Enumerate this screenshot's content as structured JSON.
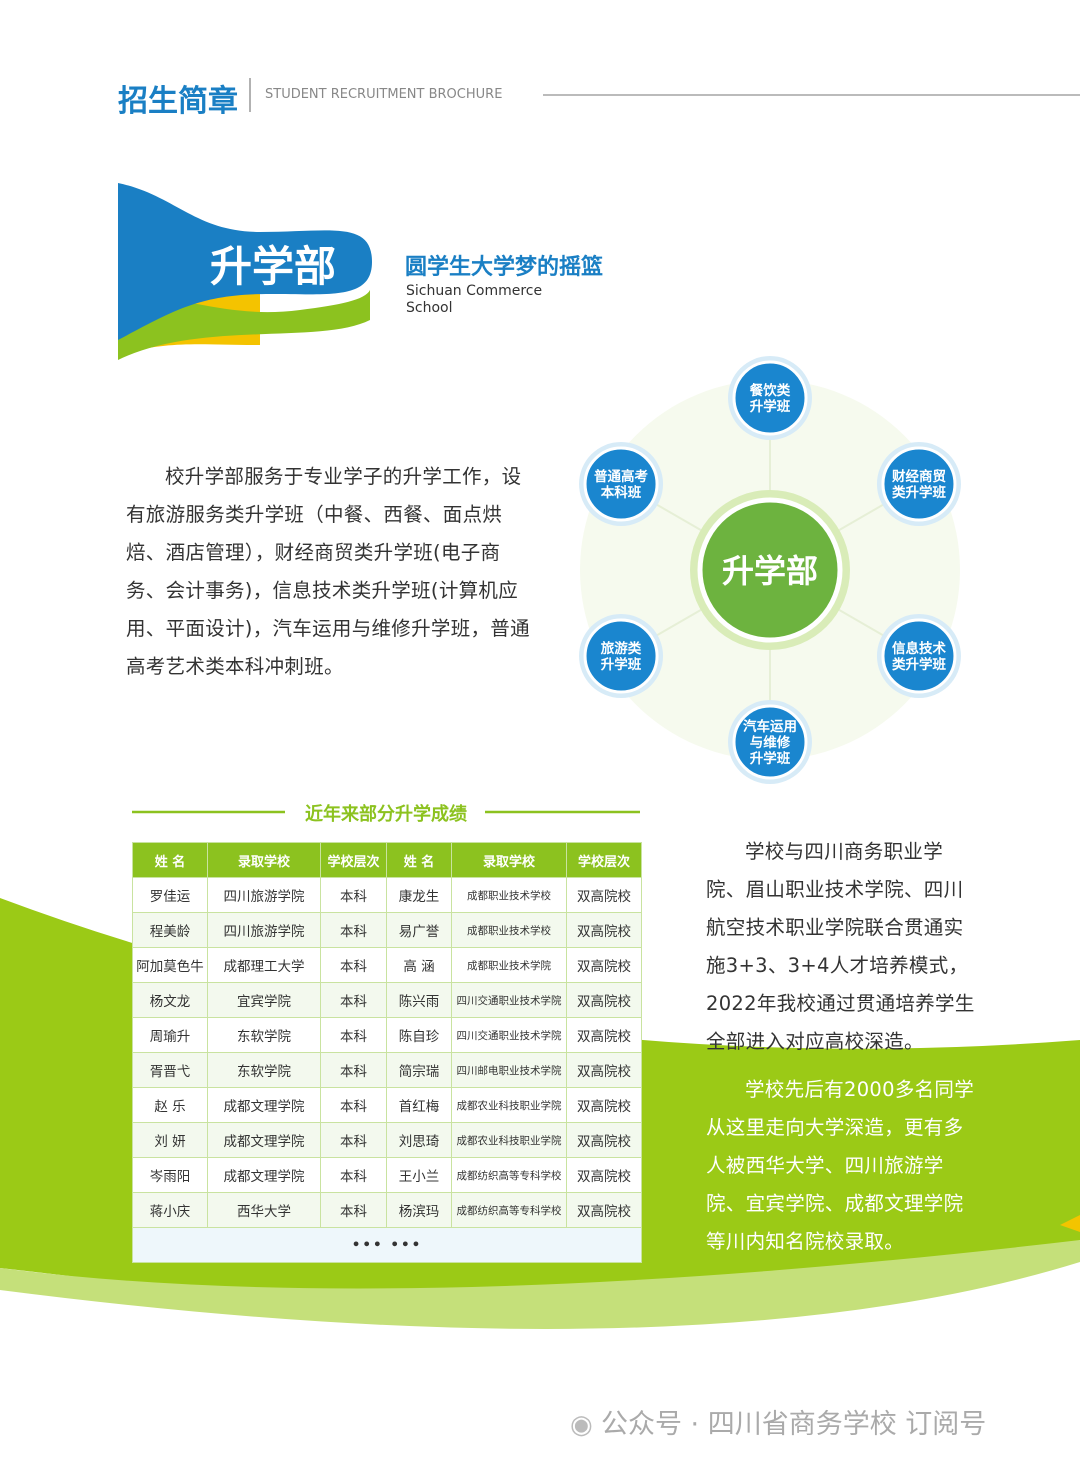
{
  "header": {
    "title": "招生简章",
    "subtitle": "STUDENT RECRUITMENT BROCHURE"
  },
  "section": {
    "badge": "升学部",
    "slogan": "圆学生大学梦的摇篮",
    "english": [
      "Sichuan Commerce",
      "School"
    ]
  },
  "intro": "校升学部服务于专业学子的升学工作，设有旅游服务类升学班（中餐、西餐、面点烘焙、酒店管理），财经商贸类升学班(电子商务、会计事务)，信息技术类升学班(计算机应用、平面设计)，汽车运用与维修升学班，普通高考艺术类本科冲刺班。",
  "diagram": {
    "center": "升学部",
    "nodes": [
      {
        "lines": [
          "餐饮类",
          "升学班"
        ]
      },
      {
        "lines": [
          "财经商贸",
          "类升学班"
        ]
      },
      {
        "lines": [
          "信息技术",
          "类升学班"
        ]
      },
      {
        "lines": [
          "汽车运用",
          "与维修",
          "升学班"
        ]
      },
      {
        "lines": [
          "旅游类",
          "升学班"
        ]
      },
      {
        "lines": [
          "普通高考",
          "本科班"
        ]
      }
    ]
  },
  "table": {
    "title": "近年来部分升学成绩",
    "headers": [
      "姓 名",
      "录取学校",
      "学校层次",
      "姓 名",
      "录取学校",
      "学校层次"
    ],
    "rows": [
      [
        "罗佳运",
        "四川旅游学院",
        "本科",
        "康龙生",
        "成都职业技术学校",
        "双高院校"
      ],
      [
        "程美龄",
        "四川旅游学院",
        "本科",
        "易广誉",
        "成都职业技术学校",
        "双高院校"
      ],
      [
        "阿加莫色牛",
        "成都理工大学",
        "本科",
        "高 涵",
        "成都职业技术学院",
        "双高院校"
      ],
      [
        "杨文龙",
        "宜宾学院",
        "本科",
        "陈兴雨",
        "四川交通职业技术学院",
        "双高院校"
      ],
      [
        "周瑜升",
        "东软学院",
        "本科",
        "陈自珍",
        "四川交通职业技术学院",
        "双高院校"
      ],
      [
        "胥晋弋",
        "东软学院",
        "本科",
        "简宗瑞",
        "四川邮电职业技术学院",
        "双高院校"
      ],
      [
        "赵 乐",
        "成都文理学院",
        "本科",
        "首红梅",
        "成都农业科技职业学院",
        "双高院校"
      ],
      [
        "刘 妍",
        "成都文理学院",
        "本科",
        "刘思琦",
        "成都农业科技职业学院",
        "双高院校"
      ],
      [
        "岑雨阳",
        "成都文理学院",
        "本科",
        "王小兰",
        "成都纺织高等专科学校",
        "双高院校"
      ],
      [
        "蒋小庆",
        "西华大学",
        "本科",
        "杨滨玛",
        "成都纺织高等专科学校",
        "双高院校"
      ]
    ],
    "more": "••• •••"
  },
  "paragraphs": [
    "学校与四川商务职业学院、眉山职业技术学院、四川航空技术职业学院联合贯通实施3+3、3+4人才培养模式，2022年我校通过贯通培养学生全部进入对应高校深造。",
    "学校先后有2000多名同学从这里走向大学深造，更有多人被西华大学、四川旅游学院、宜宾学院、成都文理学院等川内知名院校录取。"
  ],
  "footer": "公众号 · 四川省商务学校 订阅号"
}
